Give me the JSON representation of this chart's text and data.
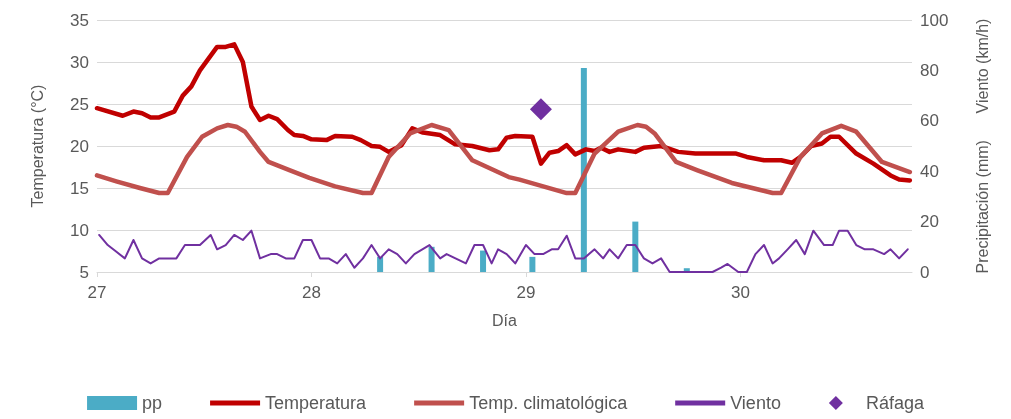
{
  "chart_data": {
    "type": "line",
    "xlabel": "Día",
    "ylabel": "Temperatura (°C)",
    "y2label": "Precipitación (mm)      Viento (km/h)",
    "xlim": [
      27,
      30.8
    ],
    "xticks": [
      27,
      28,
      29,
      30
    ],
    "ylim": [
      5,
      35
    ],
    "yticks": [
      5,
      10,
      15,
      20,
      25,
      30,
      35
    ],
    "y2lim": [
      0,
      100
    ],
    "y2ticks": [
      0,
      20,
      40,
      60,
      80,
      100
    ],
    "grid": "y",
    "legend": "bottom",
    "marker": "none",
    "series": [
      {
        "name": "pp",
        "type": "bar",
        "axis": "y2",
        "color": "#4bacc6",
        "x": [
          28.32,
          28.56,
          28.8,
          29.03,
          29.27,
          29.51,
          29.75
        ],
        "values": [
          6,
          10,
          8.5,
          6,
          81,
          20,
          1.5
        ]
      },
      {
        "name": "Temperatura",
        "color": "#c00000",
        "x": [
          27.0,
          27.12,
          27.17,
          27.21,
          27.25,
          27.29,
          27.36,
          27.4,
          27.44,
          27.48,
          27.56,
          27.6,
          27.64,
          27.68,
          27.72,
          27.76,
          27.8,
          27.84,
          27.89,
          27.92,
          27.96,
          28.0,
          28.07,
          28.11,
          28.19,
          28.23,
          28.28,
          28.32,
          28.36,
          28.42,
          28.47,
          28.52,
          28.6,
          28.67,
          28.75,
          28.83,
          28.87,
          28.91,
          28.95,
          29.03,
          29.07,
          29.11,
          29.15,
          29.19,
          29.23,
          29.28,
          29.32,
          29.35,
          29.39,
          29.43,
          29.51,
          29.55,
          29.63,
          29.71,
          29.79,
          29.98,
          30.03,
          30.11,
          30.19,
          30.24,
          30.28,
          30.33,
          30.38,
          30.42,
          30.46,
          30.54,
          30.62,
          30.7,
          30.74,
          30.79
        ],
        "values": [
          24.5,
          23.6,
          24.1,
          23.9,
          23.4,
          23.4,
          24.1,
          26.0,
          27.1,
          29.0,
          31.8,
          31.8,
          32.1,
          30.0,
          24.7,
          23.1,
          23.6,
          23.2,
          21.9,
          21.3,
          21.2,
          20.8,
          20.7,
          21.2,
          21.1,
          20.7,
          20.0,
          19.9,
          19.3,
          20.1,
          22.1,
          21.6,
          21.3,
          20.2,
          20.0,
          19.5,
          19.6,
          21.0,
          21.2,
          21.1,
          17.9,
          19.2,
          19.4,
          20.1,
          19.0,
          19.6,
          19.4,
          19.8,
          19.3,
          19.6,
          19.3,
          19.8,
          20.0,
          19.3,
          19.1,
          19.1,
          18.7,
          18.3,
          18.3,
          18.0,
          18.7,
          20.0,
          20.3,
          21.1,
          21.1,
          19.1,
          17.9,
          16.5,
          16.0,
          15.9
        ]
      },
      {
        "name": "Temp. climatológica",
        "color": "#c0504d",
        "x": [
          27.0,
          27.09,
          27.2,
          27.29,
          27.33,
          27.42,
          27.49,
          27.56,
          27.61,
          27.65,
          27.69,
          27.76,
          27.8,
          27.9,
          27.99,
          28.11,
          28.24,
          28.28,
          28.36,
          28.46,
          28.56,
          28.64,
          28.75,
          28.92,
          28.97,
          29.08,
          29.19,
          29.23,
          29.32,
          29.43,
          29.52,
          29.56,
          29.6,
          29.7,
          29.8,
          29.96,
          30.15,
          30.19,
          30.28,
          30.38,
          30.47,
          30.54,
          30.66,
          30.79
        ],
        "values": [
          16.5,
          15.8,
          15.0,
          14.4,
          14.4,
          18.7,
          21.1,
          22.1,
          22.5,
          22.3,
          21.7,
          19.3,
          18.1,
          17.1,
          16.2,
          15.2,
          14.4,
          14.4,
          18.7,
          21.5,
          22.5,
          21.9,
          18.3,
          16.3,
          16.0,
          15.2,
          14.4,
          14.4,
          19.1,
          21.7,
          22.5,
          22.3,
          21.5,
          18.1,
          17.1,
          15.6,
          14.4,
          14.4,
          18.7,
          21.5,
          22.4,
          21.7,
          18.1,
          16.9
        ]
      },
      {
        "name": "Viento",
        "axis": "y2",
        "color": "#7030a0",
        "x": [
          27.01,
          27.05,
          27.08,
          27.13,
          27.17,
          27.21,
          27.25,
          27.29,
          27.37,
          27.41,
          27.48,
          27.53,
          27.56,
          27.6,
          27.64,
          27.68,
          27.72,
          27.76,
          27.81,
          27.84,
          27.88,
          27.92,
          27.96,
          28.0,
          28.04,
          28.08,
          28.12,
          28.16,
          28.2,
          28.24,
          28.28,
          28.32,
          28.36,
          28.4,
          28.44,
          28.48,
          28.55,
          28.6,
          28.63,
          28.72,
          28.76,
          28.8,
          28.84,
          28.87,
          28.91,
          28.95,
          29.0,
          29.04,
          29.08,
          29.12,
          29.15,
          29.19,
          29.23,
          29.27,
          29.32,
          29.36,
          29.39,
          29.43,
          29.47,
          29.51,
          29.55,
          29.59,
          29.63,
          29.67,
          29.71,
          29.75,
          29.79,
          29.83,
          29.87,
          29.91,
          29.94,
          29.99,
          30.03,
          30.07,
          30.11,
          30.15,
          30.18,
          30.22,
          30.26,
          30.3,
          30.34,
          30.39,
          30.43,
          30.46,
          30.5,
          30.54,
          30.58,
          30.62,
          30.67,
          30.7,
          30.74,
          30.78
        ],
        "values": [
          14.7,
          10.7,
          8.7,
          5.4,
          12.7,
          5.4,
          3.4,
          5.4,
          5.4,
          10.7,
          10.7,
          14.7,
          9.0,
          10.7,
          14.7,
          12.7,
          16.4,
          5.4,
          7.1,
          7.1,
          5.4,
          5.4,
          12.7,
          12.7,
          5.4,
          5.4,
          3.4,
          7.1,
          1.7,
          5.4,
          10.7,
          5.4,
          9.0,
          7.1,
          3.4,
          7.1,
          10.7,
          5.4,
          7.1,
          3.4,
          10.7,
          10.7,
          3.4,
          9.0,
          7.1,
          3.4,
          10.7,
          7.1,
          7.1,
          9.0,
          9.0,
          14.4,
          5.4,
          5.4,
          9.0,
          5.4,
          9.0,
          5.4,
          10.7,
          10.7,
          5.4,
          3.4,
          5.4,
          0,
          0,
          0,
          0,
          0,
          0,
          1.7,
          3.2,
          0,
          0,
          7.1,
          10.7,
          3.4,
          5.4,
          9.0,
          12.7,
          7.1,
          16.4,
          10.7,
          10.7,
          16.4,
          16.4,
          10.7,
          9.0,
          9.0,
          7.1,
          9.0,
          5.4,
          9.0
        ]
      },
      {
        "name": "Ráfaga",
        "type": "scatter",
        "axis": "y2",
        "color": "#7030a0",
        "marker": "diamond",
        "x": [
          29.07
        ],
        "values": [
          64.6
        ]
      }
    ]
  }
}
